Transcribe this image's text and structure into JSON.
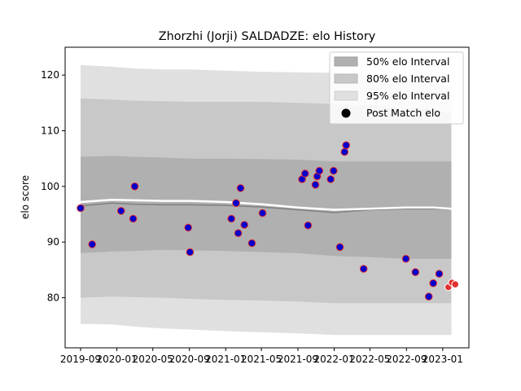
{
  "chart_data": {
    "type": "scatter",
    "title": "Zhorzhi (Jorji) SALDADZE: elo History",
    "xlabel": "",
    "ylabel": "elo score",
    "xlim": [
      "2019-07-11",
      "2023-03-30"
    ],
    "ylim": [
      71,
      125
    ],
    "xticks": [
      "2019-09",
      "2020-01",
      "2020-05",
      "2020-09",
      "2021-01",
      "2021-05",
      "2021-09",
      "2022-01",
      "2022-05",
      "2022-09",
      "2023-01"
    ],
    "yticks": [
      80,
      90,
      100,
      110,
      120
    ],
    "grid": false,
    "legend": {
      "placement": "top-right",
      "entries": [
        "50% elo Interval",
        "80% elo Interval",
        "95% elo Interval",
        "Post Match elo"
      ]
    },
    "colors": {
      "band50": "#b0b0b0",
      "band80": "#c8c8c8",
      "band95": "#e0e0e0",
      "mean_line": "#808080",
      "upper_line": "#ffffff",
      "point_fill": "#0000cc",
      "point_edge": "#e03030",
      "recent_fill": "#e03030"
    },
    "band_x": [
      "2019-09-01",
      "2019-12-15",
      "2020-03-01",
      "2020-06-01",
      "2020-09-01",
      "2021-01-01",
      "2021-05-01",
      "2021-09-01",
      "2022-01-01",
      "2022-05-01",
      "2022-09-01",
      "2022-12-01",
      "2023-01-30"
    ],
    "series_mean": [
      96.5,
      97.0,
      96.8,
      96.7,
      96.7,
      96.6,
      96.3,
      95.8,
      95.3,
      95.8,
      96.0,
      96.0,
      95.9
    ],
    "series_upper_line": [
      97.2,
      97.6,
      97.5,
      97.4,
      97.4,
      97.2,
      96.8,
      96.2,
      95.8,
      96.0,
      96.2,
      96.2,
      96.0
    ],
    "band50": {
      "upper": [
        105.3,
        105.5,
        105.3,
        105.2,
        105.0,
        105.0,
        104.9,
        104.8,
        104.5,
        104.5,
        104.5,
        104.5,
        104.5
      ],
      "lower": [
        88.0,
        88.3,
        88.4,
        88.6,
        88.5,
        88.4,
        88.2,
        88.0,
        87.5,
        87.3,
        87.0,
        87.0,
        87.0
      ]
    },
    "band80": {
      "upper": [
        115.8,
        115.6,
        115.4,
        115.3,
        115.2,
        115.2,
        115.2,
        115.0,
        114.8,
        114.5,
        114.0,
        114.0,
        113.0
      ],
      "lower": [
        80.0,
        80.2,
        80.1,
        80.0,
        79.8,
        79.6,
        79.5,
        79.3,
        79.0,
        79.0,
        79.0,
        79.0,
        79.0
      ]
    },
    "band95": {
      "upper": [
        121.8,
        121.5,
        121.2,
        121.0,
        121.0,
        120.8,
        120.6,
        120.5,
        120.4,
        120.0,
        119.5,
        118.5,
        118.0
      ],
      "lower": [
        75.3,
        75.2,
        74.8,
        74.5,
        74.3,
        74.0,
        73.8,
        73.6,
        73.3,
        73.3,
        73.3,
        73.3,
        73.3
      ]
    },
    "points": [
      {
        "x": "2019-09-01",
        "y": 96.1
      },
      {
        "x": "2019-10-10",
        "y": 89.6
      },
      {
        "x": "2020-01-15",
        "y": 95.6
      },
      {
        "x": "2020-02-25",
        "y": 94.2
      },
      {
        "x": "2020-03-01",
        "y": 100.0
      },
      {
        "x": "2020-08-28",
        "y": 92.6
      },
      {
        "x": "2020-09-03",
        "y": 88.2
      },
      {
        "x": "2021-01-20",
        "y": 94.2
      },
      {
        "x": "2021-02-05",
        "y": 97.0
      },
      {
        "x": "2021-02-12",
        "y": 91.6
      },
      {
        "x": "2021-02-20",
        "y": 99.7
      },
      {
        "x": "2021-03-05",
        "y": 93.1
      },
      {
        "x": "2021-03-30",
        "y": 89.8
      },
      {
        "x": "2021-05-05",
        "y": 95.2
      },
      {
        "x": "2021-09-15",
        "y": 101.3
      },
      {
        "x": "2021-09-25",
        "y": 102.3
      },
      {
        "x": "2021-10-05",
        "y": 93.0
      },
      {
        "x": "2021-10-30",
        "y": 100.3
      },
      {
        "x": "2021-11-05",
        "y": 101.8
      },
      {
        "x": "2021-11-12",
        "y": 102.8
      },
      {
        "x": "2021-12-20",
        "y": 101.3
      },
      {
        "x": "2021-12-30",
        "y": 102.8
      },
      {
        "x": "2022-01-20",
        "y": 89.1
      },
      {
        "x": "2022-02-05",
        "y": 106.2
      },
      {
        "x": "2022-02-10",
        "y": 107.4
      },
      {
        "x": "2022-04-10",
        "y": 85.2
      },
      {
        "x": "2022-08-30",
        "y": 87.0
      },
      {
        "x": "2022-10-01",
        "y": 84.6
      },
      {
        "x": "2022-11-15",
        "y": 80.2
      },
      {
        "x": "2022-11-30",
        "y": 82.6
      },
      {
        "x": "2022-12-20",
        "y": 84.3
      },
      {
        "x": "2023-01-20",
        "y": 81.9,
        "recent": true
      },
      {
        "x": "2023-02-01",
        "y": 82.7,
        "recent": true
      },
      {
        "x": "2023-02-12",
        "y": 82.4,
        "recent": true
      }
    ]
  }
}
